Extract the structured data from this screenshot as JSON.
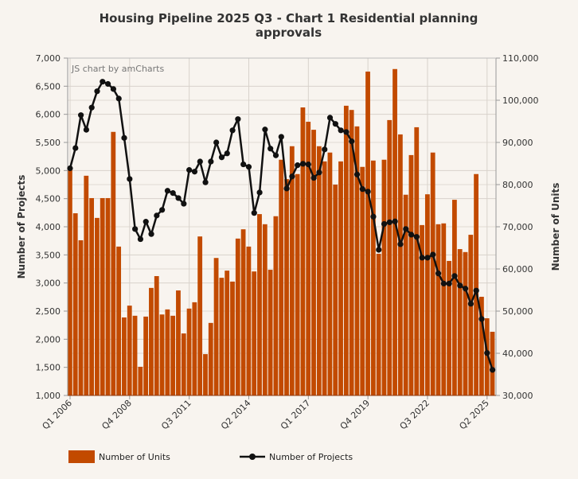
{
  "chart_data": {
    "type": "bar+line",
    "title": "Housing Pipeline 2025 Q3 - Chart 1 Residential planning approvals",
    "credit": "JS chart by amCharts",
    "xlabel": "",
    "ylabel_left": "Number of Projects",
    "ylabel_right": "Number of Units",
    "ylim_left": [
      1000,
      7000
    ],
    "ylim_right": [
      30000,
      110000
    ],
    "left_ticks": [
      "1,000",
      "1,500",
      "2,000",
      "2,500",
      "3,000",
      "3,500",
      "4,000",
      "4,500",
      "5,000",
      "5,500",
      "6,000",
      "6,500",
      "7,000"
    ],
    "right_ticks": [
      "30,000",
      "40,000",
      "50,000",
      "60,000",
      "70,000",
      "80,000",
      "90,000",
      "100,000",
      "110,000"
    ],
    "x_tick_labels": [
      "Q1 2006",
      "Q4 2008",
      "Q3 2011",
      "Q2 2014",
      "Q1 2017",
      "Q4 2019",
      "Q3 2022",
      "Q2 2025"
    ],
    "x_start": "Q1 2006",
    "x_end": "Q3 2025",
    "grid": true,
    "legend_placement": "bottom-left",
    "series": [
      {
        "name": "Number of Units",
        "type": "bar",
        "axis": "right",
        "color": "#c24a00",
        "values": [
          83400,
          73200,
          66800,
          82100,
          76800,
          72100,
          76800,
          76800,
          92500,
          65300,
          48500,
          51300,
          48900,
          36800,
          48700,
          55500,
          58300,
          49200,
          50400,
          48900,
          54900,
          44700,
          50600,
          52100,
          67700,
          39800,
          47200,
          62600,
          57900,
          59600,
          57000,
          67200,
          69400,
          65300,
          59400,
          73000,
          70600,
          59800,
          72500,
          85900,
          81300,
          89100,
          82500,
          98300,
          94900,
          93000,
          89100,
          85500,
          87600,
          80000,
          85500,
          98700,
          97700,
          93800,
          84200,
          106800,
          85700,
          63600,
          85900,
          95300,
          107400,
          91900,
          77600,
          87000,
          93600,
          70400,
          77700,
          87600,
          70600,
          70800,
          61900,
          76400,
          64700,
          64000,
          68100,
          82500,
          53400,
          48300,
          45100
        ]
      },
      {
        "name": "Number of Projects",
        "type": "line",
        "axis": "left",
        "color": "#111111",
        "values": [
          5040,
          5400,
          5985,
          5725,
          6120,
          6410,
          6580,
          6540,
          6450,
          6280,
          5580,
          4850,
          3960,
          3780,
          4090,
          3870,
          4200,
          4300,
          4640,
          4600,
          4510,
          4410,
          5010,
          4980,
          5160,
          4790,
          5160,
          5500,
          5235,
          5305,
          5715,
          5915,
          5110,
          5065,
          4245,
          4610,
          5730,
          5390,
          5270,
          5600,
          4680,
          4895,
          5095,
          5120,
          5110,
          4870,
          4965,
          5375,
          5940,
          5830,
          5715,
          5685,
          5520,
          4930,
          4670,
          4625,
          4180,
          3590,
          4050,
          4080,
          4095,
          3690,
          3960,
          3860,
          3820,
          3450,
          3450,
          3505,
          3170,
          2990,
          2990,
          3125,
          2955,
          2900,
          2630,
          2865,
          2360,
          1755,
          1455
        ]
      }
    ]
  }
}
